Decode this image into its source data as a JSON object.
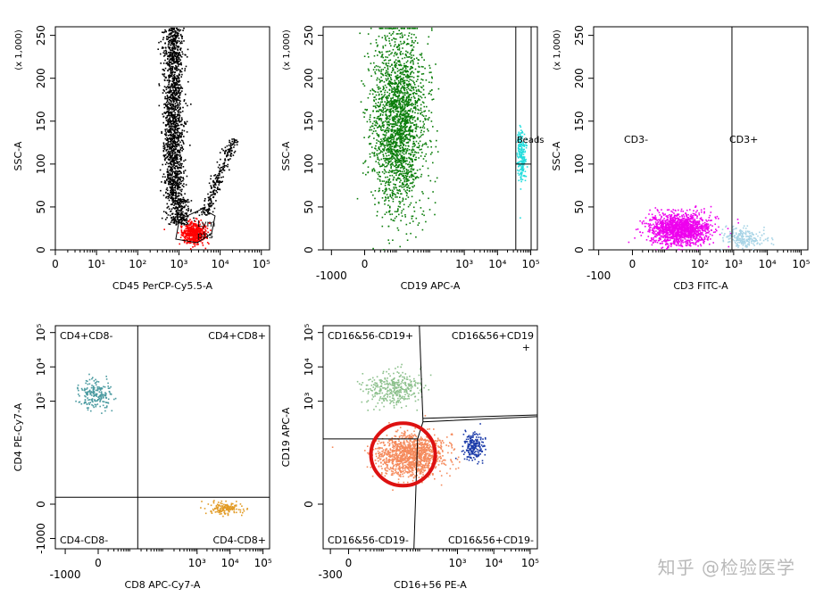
{
  "watermark": "知乎 @检验医学",
  "chart_data": [
    {
      "id": "p1",
      "type": "scatter",
      "xlabel": "CD45 PerCP-Cy5.5-A",
      "ylabel": "SSC-A",
      "yunit": "(x 1,000)",
      "xscale": "log",
      "xlim": [
        0,
        5.2
      ],
      "ylim": [
        0,
        260
      ],
      "xticks": [
        {
          "v": 0,
          "t": "0"
        },
        {
          "v": 1,
          "t": "10¹"
        },
        {
          "v": 2,
          "t": "10²"
        },
        {
          "v": 3,
          "t": "10³"
        },
        {
          "v": 4,
          "t": "10⁴"
        },
        {
          "v": 5,
          "t": "10⁵"
        }
      ],
      "yticks": [
        {
          "v": 0,
          "t": "0"
        },
        {
          "v": 50,
          "t": "50"
        },
        {
          "v": 100,
          "t": "100"
        },
        {
          "v": 150,
          "t": "150"
        },
        {
          "v": 200,
          "t": "200"
        },
        {
          "v": 250,
          "t": "250"
        }
      ],
      "gates": [
        {
          "name": "Lymphs",
          "label_lines": [
            "Lym",
            "phs"
          ],
          "color": "#ff0000",
          "center": [
            3.4,
            25
          ]
        }
      ],
      "populations": [
        {
          "name": "granulocytes",
          "color": "#000000",
          "n": 1800,
          "center": [
            2.95,
            165
          ],
          "spread": [
            0.1,
            50
          ]
        },
        {
          "name": "monocytes",
          "color": "#000000",
          "n": 250,
          "center": [
            4.0,
            80
          ],
          "spread": [
            0.15,
            20
          ]
        },
        {
          "name": "lymphocytes",
          "color": "#ff0000",
          "n": 500,
          "center": [
            3.35,
            20
          ],
          "spread": [
            0.15,
            6
          ]
        }
      ]
    },
    {
      "id": "p2",
      "type": "scatter",
      "xlabel": "CD19 APC-A",
      "ylabel": "SSC-A",
      "yunit": "(x 1,000)",
      "xlim": [
        -1.25,
        5.2
      ],
      "ylim": [
        0,
        260
      ],
      "xticks": [
        {
          "v": -1,
          "t": "-1000"
        },
        {
          "v": 0,
          "t": "0"
        },
        {
          "v": 3,
          "t": "10³"
        },
        {
          "v": 4,
          "t": "10⁴"
        },
        {
          "v": 5,
          "t": "10⁵"
        }
      ],
      "yticks": [
        {
          "v": 0,
          "t": "0"
        },
        {
          "v": 50,
          "t": "50"
        },
        {
          "v": 100,
          "t": "100"
        },
        {
          "v": 150,
          "t": "150"
        },
        {
          "v": 200,
          "t": "200"
        },
        {
          "v": 250,
          "t": "250"
        }
      ],
      "gates": [
        {
          "name": "Beads",
          "label": "Beads",
          "color": "#00e0e0",
          "xrange": [
            4.55,
            5.3
          ]
        }
      ],
      "populations": [
        {
          "name": "cells",
          "color": "#0a7d0a",
          "n": 2200,
          "center": [
            1.0,
            150
          ],
          "spread": [
            0.4,
            52
          ]
        },
        {
          "name": "beads",
          "color": "#22dddd",
          "n": 220,
          "center": [
            4.7,
            110
          ],
          "spread": [
            0.06,
            15
          ]
        }
      ]
    },
    {
      "id": "p3",
      "type": "scatter",
      "xlabel": "CD3 FITC-A",
      "ylabel": "SSC-A",
      "yunit": "(x 1,000)",
      "xlim": [
        -1.15,
        5.2
      ],
      "ylim": [
        0,
        260
      ],
      "xticks": [
        {
          "v": -1,
          "t": "-100"
        },
        {
          "v": 0,
          "t": "0"
        },
        {
          "v": 2,
          "t": "10²"
        },
        {
          "v": 3,
          "t": "10³"
        },
        {
          "v": 4,
          "t": "10⁴"
        },
        {
          "v": 5,
          "t": "10⁵"
        }
      ],
      "yticks": [
        {
          "v": 0,
          "t": "0"
        },
        {
          "v": 50,
          "t": "50"
        },
        {
          "v": 100,
          "t": "100"
        },
        {
          "v": 150,
          "t": "150"
        },
        {
          "v": 200,
          "t": "200"
        },
        {
          "v": 250,
          "t": "250"
        }
      ],
      "quadrants": {
        "x": 2.95
      },
      "quadrant_labels": [
        {
          "t": "CD3-",
          "pos": "top-left"
        },
        {
          "t": "CD3+",
          "pos": "top-right"
        }
      ],
      "populations": [
        {
          "name": "CD3-",
          "color": "#ee00ee",
          "n": 1400,
          "center": [
            1.4,
            25
          ],
          "spread": [
            0.45,
            9
          ]
        },
        {
          "name": "CD3+",
          "color": "#a8d4e6",
          "n": 220,
          "center": [
            3.3,
            15
          ],
          "spread": [
            0.3,
            6
          ]
        }
      ]
    },
    {
      "id": "p4",
      "type": "scatter",
      "xlabel": "CD8 APC-Cy7-A",
      "ylabel": "CD4 PE-Cy7-A",
      "xlim": [
        -1.3,
        5.2
      ],
      "ylim": [
        -1.3,
        5.2
      ],
      "xticks": [
        {
          "v": -1,
          "t": "-1000"
        },
        {
          "v": 0,
          "t": "0"
        },
        {
          "v": 3,
          "t": "10³"
        },
        {
          "v": 4,
          "t": "10⁴"
        },
        {
          "v": 5,
          "t": "10⁵"
        }
      ],
      "yticks": [
        {
          "v": -1,
          "t": "-1000"
        },
        {
          "v": 0,
          "t": "0"
        },
        {
          "v": 3,
          "t": "10³"
        },
        {
          "v": 4,
          "t": "10⁴"
        },
        {
          "v": 5,
          "t": "10⁵"
        }
      ],
      "quadrants": {
        "x": 1.2,
        "y": 0.2
      },
      "quadrant_labels": [
        {
          "t": "CD4+CD8-",
          "pos": "top-left"
        },
        {
          "t": "CD4+CD8+",
          "pos": "top-right"
        },
        {
          "t": "CD4-CD8-",
          "pos": "bottom-left"
        },
        {
          "t": "CD4-CD8+",
          "pos": "bottom-right"
        }
      ],
      "populations": [
        {
          "name": "CD4+CD8-",
          "color": "#4a9aa0",
          "n": 200,
          "center": [
            -0.1,
            3.2
          ],
          "spread": [
            0.25,
            0.2
          ]
        },
        {
          "name": "CD4-CD8+",
          "color": "#e29b25",
          "n": 150,
          "center": [
            3.8,
            -0.1
          ],
          "spread": [
            0.25,
            0.08
          ]
        }
      ]
    },
    {
      "id": "p5",
      "type": "scatter",
      "xlabel": "CD16+56 PE-A",
      "ylabel": "CD19 APC-A",
      "xlim": [
        -0.7,
        5.2
      ],
      "ylim": [
        -1.3,
        5.2
      ],
      "xticks": [
        {
          "v": -0.5,
          "t": "-300"
        },
        {
          "v": 0,
          "t": "0"
        },
        {
          "v": 3,
          "t": "10³"
        },
        {
          "v": 4,
          "t": "10⁴"
        },
        {
          "v": 5,
          "t": "10⁵"
        }
      ],
      "yticks": [
        {
          "v": 0,
          "t": "0"
        },
        {
          "v": 3,
          "t": "10³"
        },
        {
          "v": 4,
          "t": "10⁴"
        },
        {
          "v": 5,
          "t": "10⁵"
        }
      ],
      "quadrant_labels": [
        {
          "t": "CD16&56-CD19+",
          "pos": "top-left"
        },
        {
          "t": "CD16&56+CD19",
          "t2": "+",
          "pos": "top-right"
        },
        {
          "t": "CD16&56-CD19-",
          "pos": "bottom-left"
        },
        {
          "t": "CD16&56+CD19-",
          "pos": "bottom-right"
        }
      ],
      "highlight": {
        "color": "#dd1111",
        "center": [
          1.6,
          1.5
        ]
      },
      "populations": [
        {
          "name": "B cells",
          "color": "#8cc08c",
          "n": 350,
          "center": [
            1.2,
            3.4
          ],
          "spread": [
            0.4,
            0.25
          ]
        },
        {
          "name": "T cells",
          "color": "#f58a5c",
          "n": 1300,
          "center": [
            1.7,
            1.45
          ],
          "spread": [
            0.45,
            0.3
          ]
        },
        {
          "name": "NK cells",
          "color": "#1a3aa8",
          "n": 200,
          "center": [
            3.4,
            1.7
          ],
          "spread": [
            0.15,
            0.2
          ]
        }
      ]
    }
  ]
}
